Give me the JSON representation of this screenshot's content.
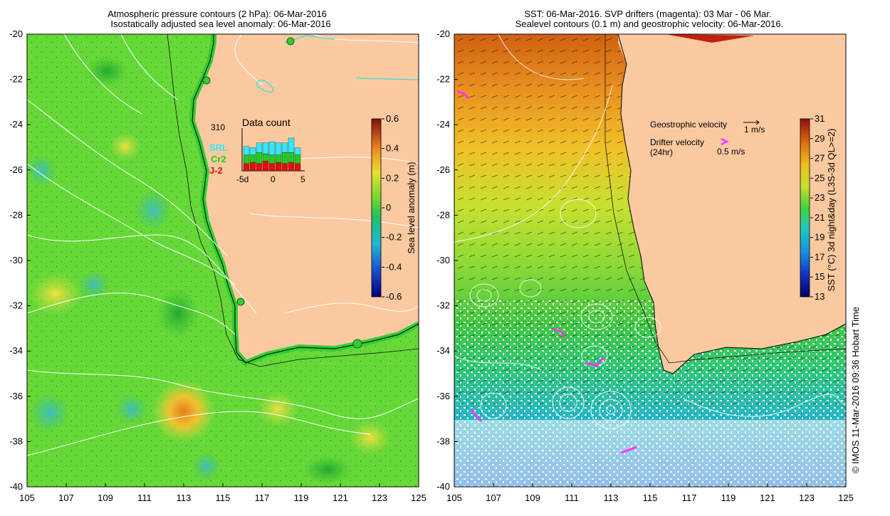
{
  "left_panel": {
    "title_line1": "Atmospheric pressure contours (2 hPa): 06-Mar-2016",
    "title_line2": "Isostatically adjusted sea level anomaly: 06-Mar-2016",
    "lat_ticks": [
      "-20",
      "-22",
      "-24",
      "-26",
      "-28",
      "-30",
      "-32",
      "-34",
      "-36",
      "-38",
      "-40"
    ],
    "lon_ticks": [
      "105",
      "107",
      "109",
      "111",
      "113",
      "115",
      "117",
      "119",
      "121",
      "123",
      "125"
    ],
    "colorbar": {
      "label": "Sea level anomaly (m)",
      "ticks": [
        "0.6",
        "0.4",
        "0.2",
        "0",
        "-0.2",
        "-0.4",
        "-0.6"
      ]
    },
    "data_count": {
      "title": "Data count",
      "max_label": "310",
      "legend": [
        "SRL",
        "Cr2",
        "J-2"
      ],
      "legend_colors": [
        "#33e8ff",
        "#22cc22",
        "#dd1111"
      ],
      "x_ticks": [
        "-5d",
        "0",
        "5"
      ],
      "bars_srl": [
        0.35,
        0.3,
        0.4,
        0.45,
        0.55,
        0.5,
        0.4,
        0.6,
        0.3
      ],
      "bars_cr2": [
        0.35,
        0.3,
        0.45,
        0.3,
        0.35,
        0.3,
        0.45,
        0.4,
        0.35
      ],
      "bars_j2": [
        0.3,
        0.35,
        0.3,
        0.4,
        0.3,
        0.35,
        0.3,
        0.35,
        0.3
      ]
    }
  },
  "right_panel": {
    "title_line1": "SST: 06-Mar-2016. SVP drifters (magenta): 03 Mar - 06 Mar.",
    "title_line2": "Sealevel contours (0.1 m) and geostrophic velocity: 06-Mar-2016.",
    "lat_ticks": [
      "-20",
      "-22",
      "-24",
      "-26",
      "-28",
      "-30",
      "-32",
      "-34",
      "-36",
      "-38",
      "-40"
    ],
    "lon_ticks": [
      "105",
      "107",
      "109",
      "111",
      "113",
      "115",
      "117",
      "119",
      "121",
      "123",
      "125"
    ],
    "legend": {
      "geostrophic_label": "Geostrophic velocity",
      "geostrophic_scale": "1 m/s",
      "drifter_label": "Drifter velocity",
      "drifter_sub": "(24hr)",
      "drifter_scale": "0.5 m/s",
      "drifter_color": "#ff33ff"
    },
    "colorbar": {
      "label": "SST (°C) 3d night&day (L3S-3d QL>=2)",
      "ticks": [
        "31",
        "29",
        "27",
        "25",
        "23",
        "21",
        "19",
        "17",
        "15",
        "13"
      ]
    }
  },
  "credit": "© IMOS 11-Mar-2016 09:36 Hobart Time",
  "colors": {
    "land": "#fbc9a0",
    "ocean_green": "#44dd33",
    "coast_cyan": "#33dddd",
    "contour": "#ffffff"
  }
}
